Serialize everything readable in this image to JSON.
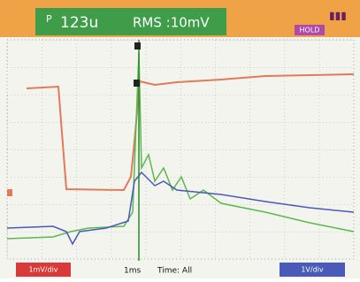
{
  "header": {
    "marker": "P",
    "readout_1": "123u",
    "readout_2": "RMS :10mV",
    "status": "HOLD"
  },
  "footer": {
    "left_scale": "1mV/div",
    "time_base": "1ms",
    "trigger": "Time: All",
    "right_scale": "1V/div"
  }
}
